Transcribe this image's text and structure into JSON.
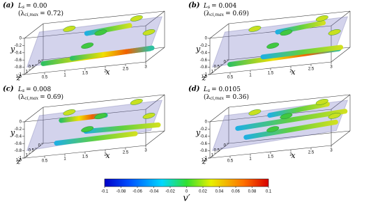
{
  "panels": [
    {
      "label": "(a)",
      "symbol": "L",
      "sub": "s",
      "eq": "= 0.00",
      "lambda_open": "(λ",
      "lambda_sub": "ci,max",
      "lambda_eq": "= 0.72)"
    },
    {
      "label": "(b)",
      "symbol": "L",
      "sub": "s",
      "eq": "= 0.004",
      "lambda_open": "(λ",
      "lambda_sub": "ci,max",
      "lambda_eq": "= 0.69)"
    },
    {
      "label": "(c)",
      "symbol": "L",
      "sub": "s",
      "eq": "= 0.008",
      "lambda_open": "(λ",
      "lambda_sub": "ci,max",
      "lambda_eq": "= 0.69)"
    },
    {
      "label": "(d)",
      "symbol": "L",
      "sub": "s",
      "eq": "= 0.0105",
      "lambda_open": "(λ",
      "lambda_sub": "ci,max",
      "lambda_eq": "= 0.36)"
    }
  ],
  "axes": {
    "y_label": "y",
    "z_label": "z",
    "x_label": "x",
    "y_ticks": [
      0,
      -0.2,
      -0.4,
      -0.6,
      -0.8,
      -1
    ],
    "z_ticks": [
      0,
      0.5,
      1,
      1.5
    ],
    "x_ticks": [
      0.5,
      1,
      1.5,
      2,
      2.5,
      3
    ]
  },
  "colorbar": {
    "ticks": [
      -0.1,
      -0.08,
      -0.06,
      -0.04,
      -0.02,
      0,
      0.02,
      0.04,
      0.06,
      0.08,
      0.1
    ],
    "label": "v′"
  }
}
